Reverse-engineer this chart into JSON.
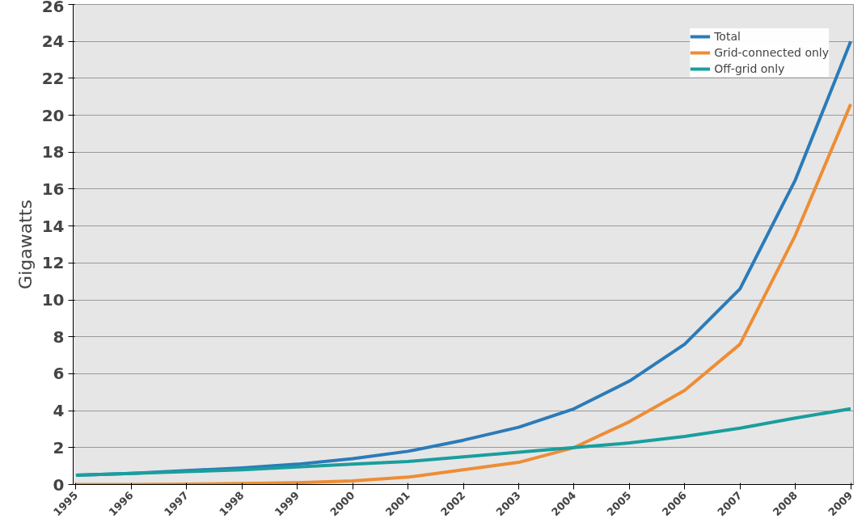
{
  "chart_data": {
    "type": "line",
    "ylabel": "Gigawatts",
    "categories": [
      "1995",
      "1996",
      "1997",
      "1998",
      "1999",
      "2000",
      "2001",
      "2002",
      "2003",
      "2004",
      "2005",
      "2006",
      "2007",
      "2008",
      "2009"
    ],
    "series": [
      {
        "name": "Total",
        "color": "#2b7bb9",
        "values": [
          0.5,
          0.6,
          0.75,
          0.9,
          1.1,
          1.4,
          1.8,
          2.4,
          3.1,
          4.1,
          5.6,
          7.6,
          10.6,
          16.5,
          24.0
        ]
      },
      {
        "name": "Grid-connected only",
        "color": "#ee8d35",
        "values": [
          0,
          0,
          0.02,
          0.05,
          0.1,
          0.2,
          0.4,
          0.8,
          1.2,
          2.0,
          3.4,
          5.1,
          7.6,
          13.5,
          20.6
        ]
      },
      {
        "name": "Off-grid only",
        "color": "#1a9e9e",
        "values": [
          0.5,
          0.6,
          0.7,
          0.8,
          0.95,
          1.1,
          1.25,
          1.5,
          1.75,
          2.0,
          2.25,
          2.6,
          3.05,
          3.6,
          4.1
        ]
      }
    ],
    "ylim": [
      0,
      26
    ],
    "yticks": [
      0,
      2,
      4,
      6,
      8,
      10,
      12,
      14,
      16,
      18,
      20,
      22,
      24,
      26
    ],
    "grid": "y",
    "legend": "top right",
    "marker": "none",
    "line_style": "solid"
  }
}
